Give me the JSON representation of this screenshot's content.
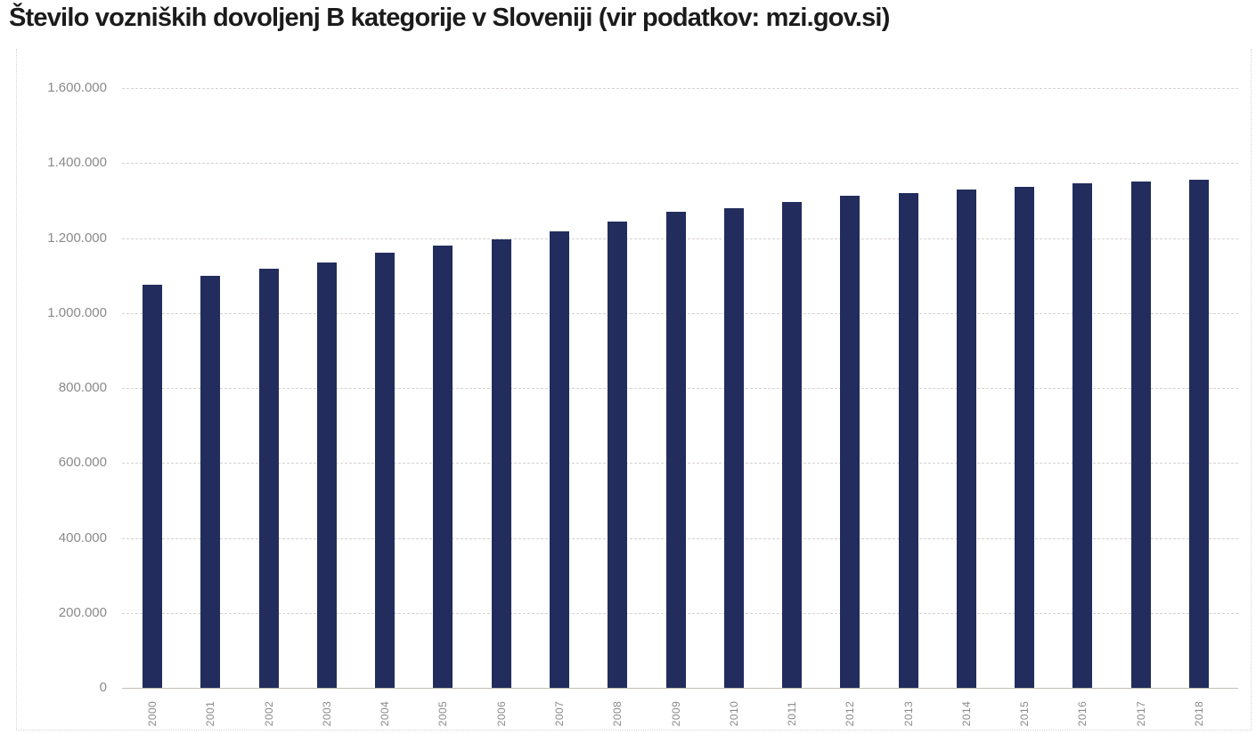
{
  "title": "Število vozniških dovoljenj B kategorije v Sloveniji (vir podatkov: mzi.gov.si)",
  "colors": {
    "bar": "#222c5d",
    "title_text": "#1b1b1b",
    "axis_label_text": "#8a8a8a",
    "gridline": "#d8d2ce",
    "axis_line": "#c2bcb8",
    "frame_border": "#d9d2ce",
    "background": "#ffffff"
  },
  "chart_data": {
    "type": "bar",
    "title": "Število vozniških dovoljenj B kategorije v Sloveniji (vir podatkov: mzi.gov.si)",
    "categories": [
      "2000",
      "2001",
      "2002",
      "2003",
      "2004",
      "2005",
      "2006",
      "2007",
      "2008",
      "2009",
      "2010",
      "2011",
      "2012",
      "2013",
      "2014",
      "2015",
      "2016",
      "2017",
      "2018"
    ],
    "values": [
      1075000,
      1100000,
      1117000,
      1135000,
      1160000,
      1180000,
      1197000,
      1218000,
      1243000,
      1270000,
      1279000,
      1296000,
      1312000,
      1321000,
      1330000,
      1337000,
      1345000,
      1351000,
      1355000
    ],
    "xlabel": "",
    "ylabel": "",
    "ylim": [
      0,
      1600000
    ],
    "ytick_step": 200000,
    "ytick_labels": [
      "0",
      "200.000",
      "400.000",
      "600.000",
      "800.000",
      "1.000.000",
      "1.200.000",
      "1.400.000",
      "1.600.000"
    ],
    "grid": true,
    "gridline_style": "dashed",
    "legend": false,
    "bar_color": "#222c5d",
    "x_tick_rotation_deg": -90
  }
}
